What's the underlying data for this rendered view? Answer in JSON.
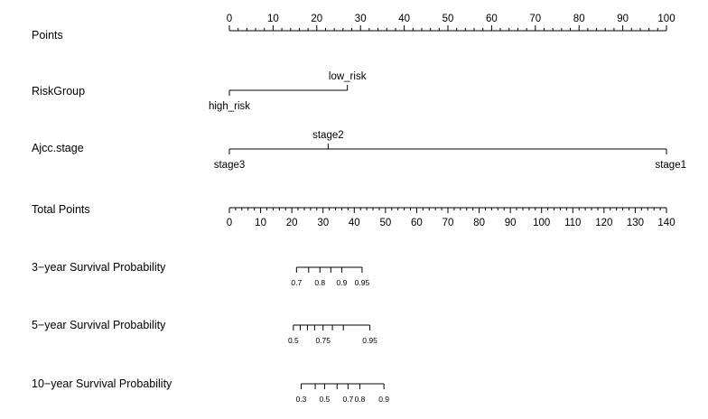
{
  "chart_data": {
    "type": "nomogram",
    "rows": [
      {
        "id": "points",
        "label": "Points",
        "kind": "scale",
        "min": 0,
        "max": 100,
        "major": [
          0,
          10,
          20,
          30,
          40,
          50,
          60,
          70,
          80,
          90,
          100
        ],
        "minor_step": 2,
        "labels_above": true
      },
      {
        "id": "riskgroup",
        "label": "RiskGroup",
        "kind": "categorical",
        "levels": [
          {
            "name": "high_risk",
            "points": 0,
            "label_side": "below"
          },
          {
            "name": "low_risk",
            "points": 27,
            "label_side": "above"
          }
        ]
      },
      {
        "id": "ajcc",
        "label": "Ajcc.stage",
        "kind": "categorical",
        "levels": [
          {
            "name": "stage3",
            "points": 0,
            "label_side": "below"
          },
          {
            "name": "stage2",
            "points": 22.6,
            "label_side": "above"
          },
          {
            "name": "stage1",
            "points": 100,
            "label_side": "below"
          }
        ]
      },
      {
        "id": "total",
        "label": "Total Points",
        "kind": "scale",
        "min": 0,
        "max": 140,
        "major": [
          0,
          10,
          20,
          30,
          40,
          50,
          60,
          70,
          80,
          90,
          100,
          110,
          120,
          130,
          140
        ],
        "minor_step": 2,
        "labels_above": false
      },
      {
        "id": "surv3",
        "label": "3−year Survival Probability",
        "kind": "probability",
        "ticks": [
          {
            "total": 21.5,
            "label": "0.7"
          },
          {
            "total": 25.4,
            "label": ""
          },
          {
            "total": 29.0,
            "label": "0.8"
          },
          {
            "total": 32.5,
            "label": ""
          },
          {
            "total": 36.0,
            "label": "0.9"
          },
          {
            "total": 42.5,
            "label": "0.95"
          }
        ]
      },
      {
        "id": "surv5",
        "label": "5−year Survival Probability",
        "kind": "probability",
        "ticks": [
          {
            "total": 20.5,
            "label": "0.5"
          },
          {
            "total": 22.7,
            "label": ""
          },
          {
            "total": 25.0,
            "label": ""
          },
          {
            "total": 27.3,
            "label": ""
          },
          {
            "total": 30.0,
            "label": "0.75"
          },
          {
            "total": 33.0,
            "label": ""
          },
          {
            "total": 36.5,
            "label": ""
          },
          {
            "total": 45.0,
            "label": "0.95"
          }
        ]
      },
      {
        "id": "surv10",
        "label": "10−year Survival Probability",
        "kind": "probability",
        "ticks": [
          {
            "total": 23.0,
            "label": "0.3"
          },
          {
            "total": 27.5,
            "label": ""
          },
          {
            "total": 30.5,
            "label": "0.5"
          },
          {
            "total": 34.5,
            "label": ""
          },
          {
            "total": 38.0,
            "label": "0.7"
          },
          {
            "total": 41.8,
            "label": "0.8"
          },
          {
            "total": 49.5,
            "label": "0.9"
          }
        ]
      }
    ]
  }
}
